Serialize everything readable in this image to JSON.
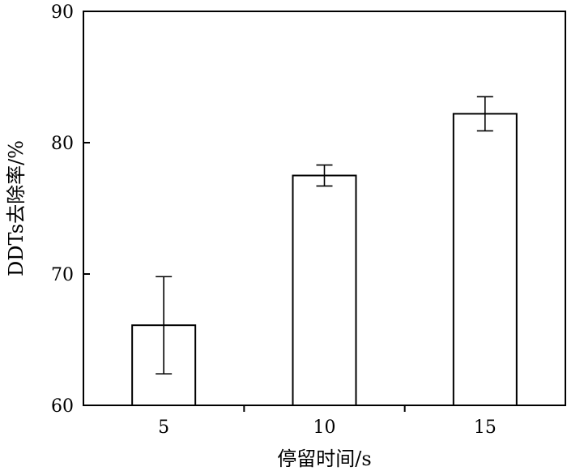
{
  "chart_data": {
    "type": "bar",
    "title": "",
    "xlabel": "停留时间/s",
    "ylabel": "DDTs去除率/%",
    "categories": [
      "5",
      "10",
      "15"
    ],
    "values": [
      66.1,
      77.5,
      82.2
    ],
    "errors": [
      3.7,
      0.8,
      1.3
    ],
    "ylim": [
      60,
      90
    ],
    "yticks": [
      "60",
      "70",
      "80",
      "90"
    ],
    "grid": false,
    "legend": "none",
    "bar_fill": "#ffffff",
    "stroke_color": "#000000"
  }
}
